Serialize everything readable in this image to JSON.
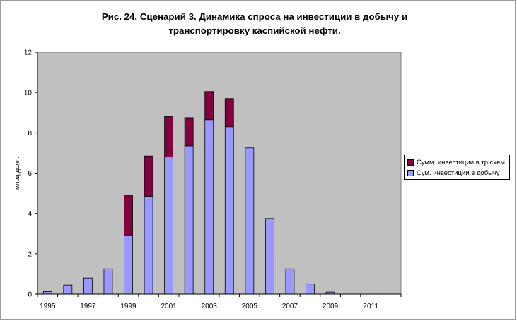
{
  "chart_data": {
    "type": "bar",
    "stacked": true,
    "title": "Рис. 24. Сценарий 3. Динамика спроса на инвестиции в добычу и транспортировку каспийской нефти.",
    "title_lines": [
      "Рис. 24. Сценарий 3. Динамика спроса на инвестиции в добычу и",
      "транспортировку каспийской нефти."
    ],
    "ylabel": "млрд долл.",
    "xlabel": "",
    "ylim": [
      0,
      12
    ],
    "yticks": [
      "0",
      "2",
      "4",
      "6",
      "8",
      "10",
      "12"
    ],
    "categories": [
      "1995",
      "1996",
      "1997",
      "1998",
      "1999",
      "2000",
      "2001",
      "2002",
      "2003",
      "2004",
      "2005",
      "2006",
      "2007",
      "2008",
      "2009",
      "2010",
      "2011",
      "2012"
    ],
    "xtick_labels": [
      "1995",
      "1997",
      "1999",
      "2001",
      "2003",
      "2005",
      "2007",
      "2009",
      "2011"
    ],
    "grid": false,
    "plot_background": "#c0c0c0",
    "legend_position": "right",
    "series": [
      {
        "name": "Сум. инвестиции в добычу",
        "color": "#9999ff",
        "values": [
          0.12,
          0.45,
          0.8,
          1.25,
          2.9,
          4.85,
          6.8,
          7.35,
          8.65,
          8.3,
          7.25,
          3.75,
          1.25,
          0.5,
          0.1,
          0,
          0,
          0
        ]
      },
      {
        "name": "Сумм. инвестиции в тр.схем",
        "color": "#800040",
        "values": [
          0,
          0,
          0,
          0,
          2.0,
          2.0,
          2.0,
          1.4,
          1.4,
          1.4,
          0,
          0,
          0,
          0,
          0,
          0,
          0,
          0
        ]
      }
    ]
  }
}
